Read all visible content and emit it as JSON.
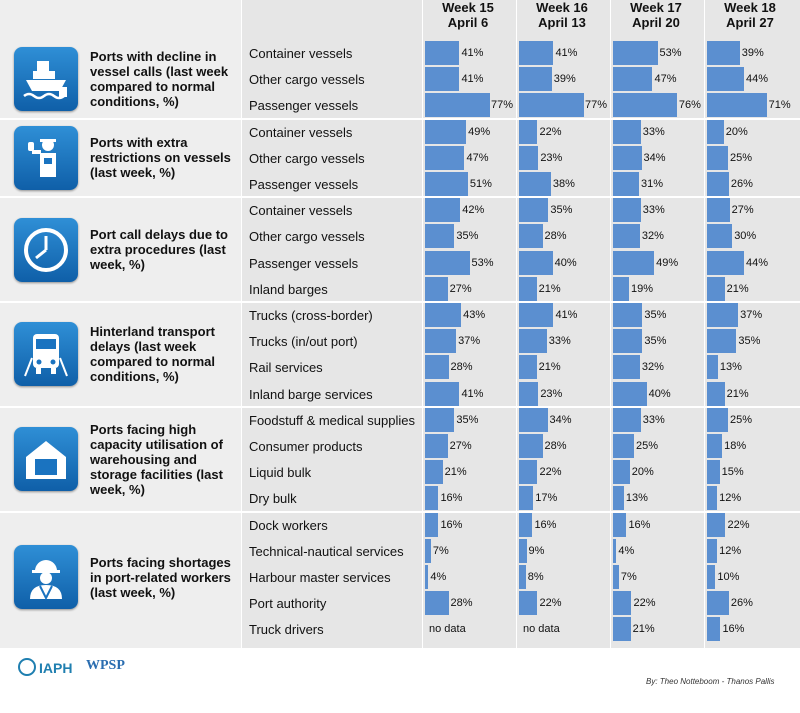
{
  "weeks": [
    {
      "label": "Week 15",
      "date": "April 6"
    },
    {
      "label": "Week 16",
      "date": "April 13"
    },
    {
      "label": "Week 17",
      "date": "April 20"
    },
    {
      "label": "Week 18",
      "date": "April 27"
    }
  ],
  "icons": [
    "ship-icon",
    "officer-icon",
    "clock-icon",
    "truck-icon",
    "warehouse-icon",
    "worker-icon"
  ],
  "colors": {
    "bar": "#5b8fd0",
    "icon": "#1a73c0"
  },
  "no_data_text": "no data",
  "footer": {
    "logo_left": "IAPH",
    "logo_right": "WPSP",
    "credit": "By: Theo Notteboom - Thanos Pallis"
  },
  "chart_data": {
    "type": "bar",
    "orientation": "horizontal",
    "unit": "%",
    "groups": [
      {
        "title": "Ports with decline in vessel calls (last week compared to normal conditions, %)",
        "rows": [
          {
            "label": "Container vessels",
            "values": [
              41,
              41,
              53,
              39
            ]
          },
          {
            "label": "Other cargo vessels",
            "values": [
              41,
              39,
              47,
              44
            ]
          },
          {
            "label": "Passenger vessels",
            "values": [
              77,
              77,
              76,
              71
            ]
          }
        ]
      },
      {
        "title": "Ports with extra restrictions on vessels (last week, %)",
        "rows": [
          {
            "label": "Container vessels",
            "values": [
              49,
              22,
              33,
              20
            ]
          },
          {
            "label": "Other cargo vessels",
            "values": [
              47,
              23,
              34,
              25
            ]
          },
          {
            "label": "Passenger vessels",
            "values": [
              51,
              38,
              31,
              26
            ]
          }
        ]
      },
      {
        "title": "Port call delays due to extra procedures (last week, %)",
        "rows": [
          {
            "label": "Container vessels",
            "values": [
              42,
              35,
              33,
              27
            ]
          },
          {
            "label": "Other cargo vessels",
            "values": [
              35,
              28,
              32,
              30
            ]
          },
          {
            "label": "Passenger vessels",
            "values": [
              53,
              40,
              49,
              44
            ]
          },
          {
            "label": "Inland barges",
            "values": [
              27,
              21,
              19,
              21
            ]
          }
        ]
      },
      {
        "title": "Hinterland transport delays (last week compared to normal conditions, %)",
        "rows": [
          {
            "label": "Trucks (cross-border)",
            "values": [
              43,
              41,
              35,
              37
            ]
          },
          {
            "label": "Trucks (in/out port)",
            "values": [
              37,
              33,
              35,
              35
            ]
          },
          {
            "label": "Rail services",
            "values": [
              28,
              21,
              32,
              13
            ]
          },
          {
            "label": "Inland barge services",
            "values": [
              41,
              23,
              40,
              21
            ]
          }
        ]
      },
      {
        "title": "Ports facing high capacity utilisation of warehousing and storage facilities (last week, %)",
        "rows": [
          {
            "label": "Foodstuff & medical supplies",
            "values": [
              35,
              34,
              33,
              25
            ]
          },
          {
            "label": "Consumer products",
            "values": [
              27,
              28,
              25,
              18
            ]
          },
          {
            "label": "Liquid bulk",
            "values": [
              21,
              22,
              20,
              15
            ]
          },
          {
            "label": "Dry bulk",
            "values": [
              16,
              17,
              13,
              12
            ]
          }
        ]
      },
      {
        "title": "Ports facing shortages in port-related workers (last week, %)",
        "rows": [
          {
            "label": "Dock workers",
            "values": [
              16,
              16,
              16,
              22
            ]
          },
          {
            "label": "Technical-nautical services",
            "values": [
              7,
              9,
              4,
              12
            ]
          },
          {
            "label": "Harbour master services",
            "values": [
              4,
              8,
              7,
              10
            ]
          },
          {
            "label": "Port authority",
            "values": [
              28,
              22,
              22,
              26
            ]
          },
          {
            "label": "Truck drivers",
            "values": [
              null,
              null,
              21,
              16
            ]
          }
        ]
      }
    ]
  }
}
